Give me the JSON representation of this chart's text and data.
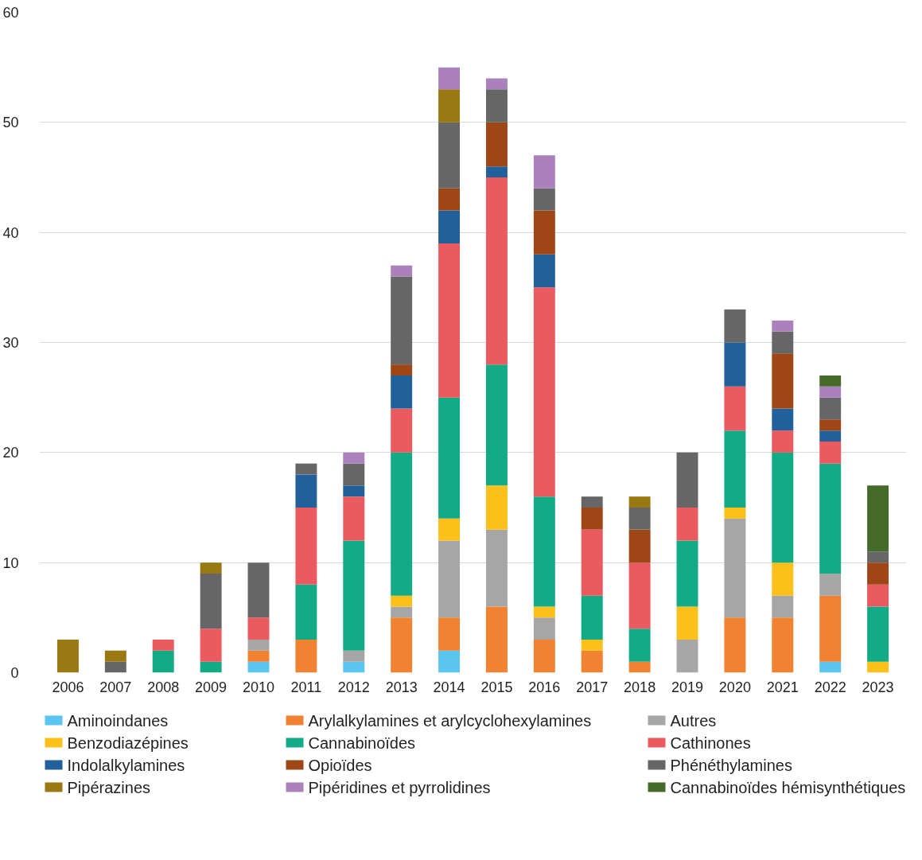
{
  "chart_data": {
    "type": "bar",
    "stacked": true,
    "grid": "y",
    "legend": "bottom",
    "categories": [
      "2006",
      "2007",
      "2008",
      "2009",
      "2010",
      "2011",
      "2012",
      "2013",
      "2014",
      "2015",
      "2016",
      "2017",
      "2018",
      "2019",
      "2020",
      "2021",
      "2022",
      "2023"
    ],
    "ylim": [
      0,
      60
    ],
    "yticks": [
      0,
      10,
      20,
      30,
      40,
      50,
      60
    ],
    "series": [
      {
        "name": "Aminoindanes",
        "color": "#5bc5f2",
        "values": [
          null,
          null,
          null,
          null,
          1,
          null,
          1,
          null,
          2,
          null,
          null,
          null,
          null,
          null,
          null,
          null,
          1,
          null
        ]
      },
      {
        "name": "Arylalkylamines et arylcyclohexylamines",
        "color": "#f08232",
        "values": [
          null,
          null,
          null,
          null,
          1,
          3,
          null,
          5,
          3,
          6,
          3,
          2,
          1,
          null,
          5,
          5,
          6,
          null
        ]
      },
      {
        "name": "Autres",
        "color": "#a6a6a6",
        "values": [
          null,
          null,
          null,
          null,
          1,
          null,
          1,
          1,
          7,
          7,
          2,
          null,
          null,
          3,
          9,
          2,
          2,
          null
        ]
      },
      {
        "name": "Benzodiazépines",
        "color": "#fdc01a",
        "values": [
          null,
          null,
          null,
          null,
          null,
          null,
          null,
          1,
          2,
          4,
          1,
          1,
          null,
          3,
          1,
          3,
          null,
          1
        ]
      },
      {
        "name": "Cannabinoïdes",
        "color": "#12ab86",
        "values": [
          null,
          null,
          2,
          1,
          null,
          5,
          10,
          13,
          11,
          11,
          10,
          4,
          3,
          6,
          7,
          10,
          10,
          5
        ]
      },
      {
        "name": "Cathinones",
        "color": "#eb5a5f",
        "values": [
          null,
          null,
          1,
          3,
          2,
          7,
          4,
          4,
          14,
          17,
          19,
          6,
          6,
          3,
          4,
          2,
          2,
          2
        ]
      },
      {
        "name": "Indolalkylamines",
        "color": "#21609a",
        "values": [
          null,
          null,
          null,
          null,
          null,
          3,
          1,
          3,
          3,
          1,
          3,
          null,
          null,
          null,
          4,
          2,
          1,
          null
        ]
      },
      {
        "name": "Opioïdes",
        "color": "#9e4616",
        "values": [
          null,
          null,
          null,
          null,
          null,
          null,
          null,
          1,
          2,
          4,
          4,
          2,
          3,
          null,
          null,
          5,
          1,
          2
        ]
      },
      {
        "name": "Phénéthylamines",
        "color": "#666666",
        "values": [
          null,
          1,
          null,
          5,
          5,
          1,
          2,
          8,
          6,
          3,
          2,
          1,
          2,
          5,
          3,
          2,
          2,
          1
        ]
      },
      {
        "name": "Pipérazines",
        "color": "#9a7812",
        "values": [
          3,
          1,
          null,
          1,
          null,
          null,
          null,
          null,
          3,
          null,
          null,
          null,
          1,
          null,
          null,
          null,
          null,
          null
        ]
      },
      {
        "name": "Pipéridines et pyrrolidines",
        "color": "#ab81bb",
        "values": [
          null,
          null,
          null,
          null,
          null,
          null,
          1,
          1,
          2,
          1,
          3,
          null,
          null,
          null,
          null,
          1,
          1,
          null
        ]
      },
      {
        "name": "Cannabinoïdes hémisynthétiques",
        "color": "#456b2b",
        "values": [
          null,
          null,
          null,
          null,
          null,
          null,
          null,
          null,
          null,
          null,
          null,
          null,
          null,
          null,
          null,
          null,
          1,
          6
        ]
      }
    ]
  }
}
